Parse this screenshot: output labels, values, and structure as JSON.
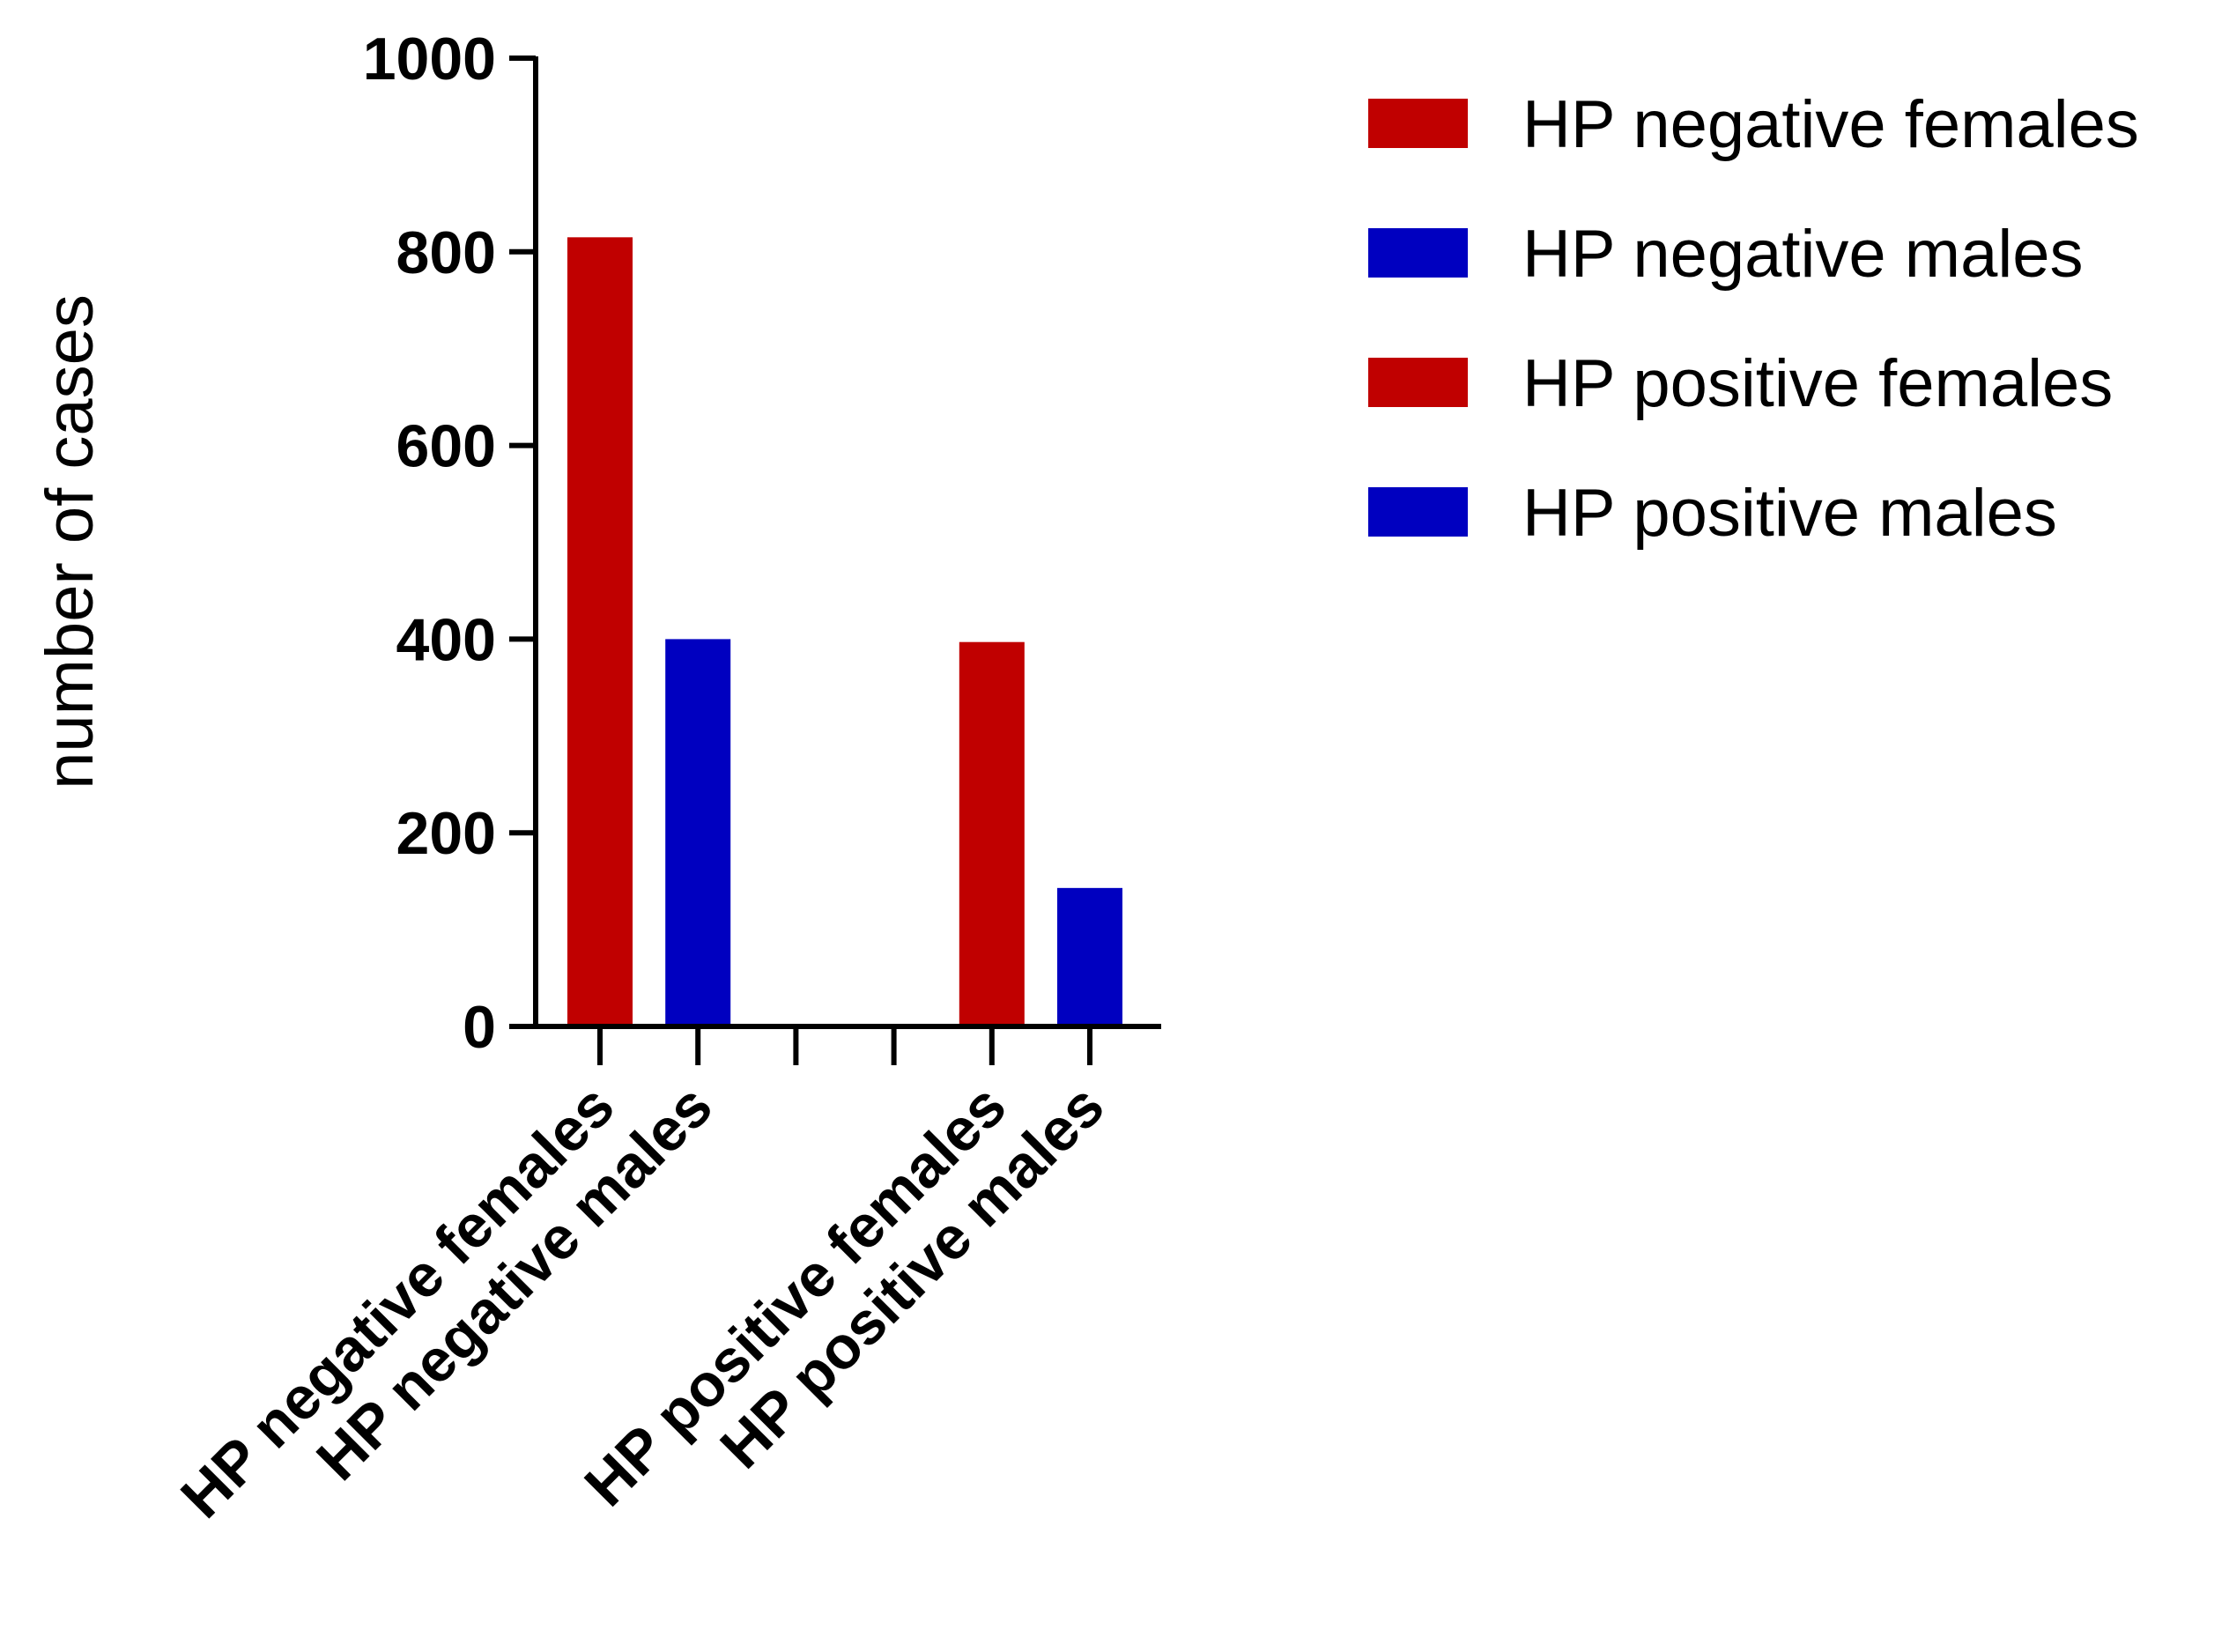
{
  "chart_data": {
    "type": "bar",
    "title": "",
    "xlabel": "",
    "ylabel": "number of cases",
    "ylim": [
      0,
      1000
    ],
    "yticks": [
      "0",
      "200",
      "400",
      "600",
      "800",
      "1000"
    ],
    "grid": false,
    "legend_position": "top-right",
    "slots": [
      {
        "label": "HP negative females",
        "value": 815,
        "color": "#c00000"
      },
      {
        "label": "HP negative males",
        "value": 400,
        "color": "#0000c0"
      },
      {
        "label": "",
        "value": null,
        "color": ""
      },
      {
        "label": "",
        "value": null,
        "color": ""
      },
      {
        "label": "HP positive females",
        "value": 397,
        "color": "#c00000"
      },
      {
        "label": "HP positive males",
        "value": 143,
        "color": "#0000c0"
      }
    ],
    "legend": [
      {
        "label": "HP negative females",
        "color": "#c00000"
      },
      {
        "label": "HP negative males",
        "color": "#0000c0"
      },
      {
        "label": "HP positive females",
        "color": "#c00000"
      },
      {
        "label": "HP positive males",
        "color": "#0000c0"
      }
    ]
  }
}
